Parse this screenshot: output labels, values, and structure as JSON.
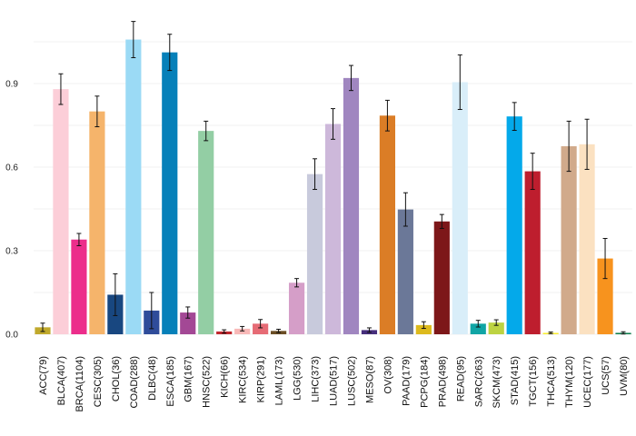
{
  "chart_data": {
    "type": "bar",
    "title": "",
    "xlabel": "",
    "ylabel": "",
    "ylim": [
      0,
      1.1
    ],
    "yticks": [
      0.0,
      0.3,
      0.6,
      0.9
    ],
    "ytick_labels": [
      "0.0",
      "0.3",
      "0.6",
      "0.9"
    ],
    "grid": true,
    "legend": "none",
    "categories": [
      "ACC(79)",
      "BLCA(407)",
      "BRCA(1104)",
      "CESC(305)",
      "CHOL(36)",
      "COAD(288)",
      "DLBC(48)",
      "ESCA(185)",
      "GBM(167)",
      "HNSC(522)",
      "KICH(66)",
      "KIRC(534)",
      "KIRP(291)",
      "LAML(173)",
      "LGG(530)",
      "LIHC(373)",
      "LUAD(517)",
      "LUSC(502)",
      "MESO(87)",
      "OV(308)",
      "PAAD(179)",
      "PCPG(184)",
      "PRAD(498)",
      "READ(95)",
      "SARC(263)",
      "SKCM(473)",
      "STAD(415)",
      "TGCT(156)",
      "THCA(513)",
      "THYM(120)",
      "UCEC(177)",
      "UCS(57)",
      "UVM(80)"
    ],
    "values": [
      0.025,
      0.88,
      0.34,
      0.8,
      0.142,
      1.058,
      0.085,
      1.012,
      0.078,
      0.73,
      0.01,
      0.02,
      0.038,
      0.012,
      0.185,
      0.575,
      0.755,
      0.92,
      0.015,
      0.785,
      0.448,
      0.033,
      0.405,
      0.905,
      0.038,
      0.042,
      0.782,
      0.585,
      0.005,
      0.675,
      0.682,
      0.272,
      0.005
    ],
    "error": [
      0.015,
      0.055,
      0.022,
      0.055,
      0.075,
      0.065,
      0.065,
      0.065,
      0.02,
      0.035,
      0.006,
      0.008,
      0.015,
      0.006,
      0.015,
      0.055,
      0.055,
      0.045,
      0.008,
      0.055,
      0.06,
      0.012,
      0.025,
      0.098,
      0.012,
      0.01,
      0.05,
      0.065,
      0.003,
      0.09,
      0.09,
      0.072,
      0.004
    ],
    "colors": [
      "#C0A92C",
      "#FCCED8",
      "#EC2D8B",
      "#F5B46B",
      "#184780",
      "#9BDAF5",
      "#2F4C9A",
      "#0680B9",
      "#A34895",
      "#93CEA4",
      "#C1272D",
      "#F8B9B8",
      "#E66B75",
      "#6B4E25",
      "#D59EC8",
      "#C8CADC",
      "#CDB8DA",
      "#A086C0",
      "#462E7C",
      "#DB7D26",
      "#6B7898",
      "#DDBA1D",
      "#7D1719",
      "#D9EEF9",
      "#10A5A5",
      "#BDD342",
      "#04A9EA",
      "#BE1E2E",
      "#F9ED31",
      "#D1AA8B",
      "#FBE1C1",
      "#F7931E",
      "#0D7F4C"
    ]
  }
}
